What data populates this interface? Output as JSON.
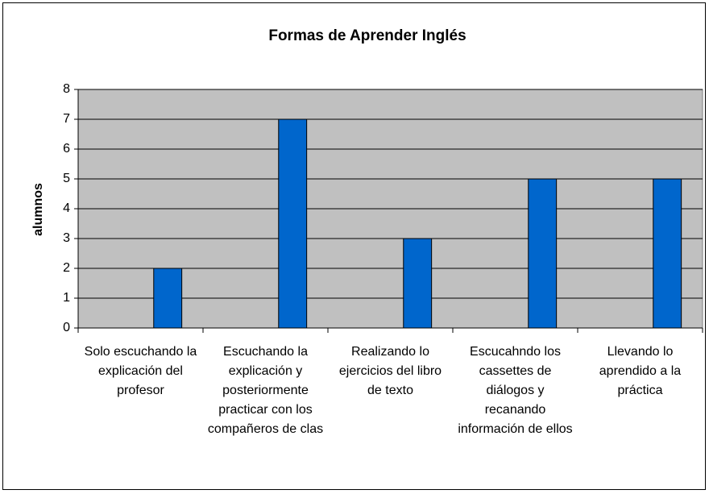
{
  "chart_data": {
    "type": "bar",
    "title": "Formas de Aprender Inglés",
    "y_label": "alumnos",
    "categories": [
      "Solo escuchando la explicación del profesor",
      "Escuchando la explicación y posteriormente practicar con los compañeros de clas",
      "Realizando lo ejercicios del libro de texto",
      "Escucahndo los cassettes de diálogos y recanando información de ellos",
      "Llevando lo aprendido a la práctica"
    ],
    "values": [
      2,
      7,
      3,
      5,
      5
    ],
    "color": "#0066cc",
    "plot_background": "#c0c0c0",
    "ylim": [
      0,
      8
    ],
    "yticks": [
      0,
      1,
      2,
      3,
      4,
      5,
      6,
      7,
      8
    ],
    "grid": true
  }
}
